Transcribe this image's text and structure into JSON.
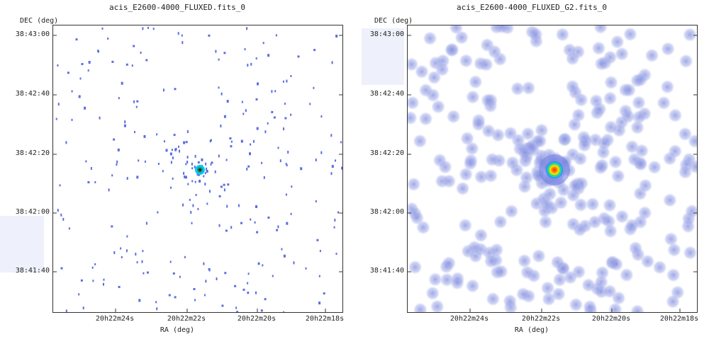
{
  "left_panel": {
    "title": "acis_E2600-4000_FLUXED.fits_0",
    "dec_label": "DEC (deg)",
    "ra_label": "RA (deg)",
    "y_ticks": [
      "38:43:00",
      "38:42:40",
      "38:42:20",
      "38:42:00",
      "38:41:40"
    ],
    "x_ticks": [
      "20h22m24s",
      "20h22m22s",
      "20h22m20s",
      "20h22m18s"
    ]
  },
  "right_panel": {
    "title": "acis_E2600-4000_FLUXED_G2.fits_0",
    "dec_label": "DEC (deg)",
    "ra_label": "RA (deg)",
    "y_ticks": [
      "38:43:00",
      "38:42:40",
      "38:42:20",
      "38:42:00",
      "38:41:40"
    ],
    "x_ticks": [
      "20h22m24s",
      "20h22m22s",
      "20h22m20s",
      "20h22m18s"
    ]
  },
  "colors": {
    "event": "#5a6ee0",
    "smoothed": "#8f9ae6",
    "source_core": "#ff2a00",
    "source_mid": "#ffe600",
    "source_outer": "#00c8ff"
  }
}
